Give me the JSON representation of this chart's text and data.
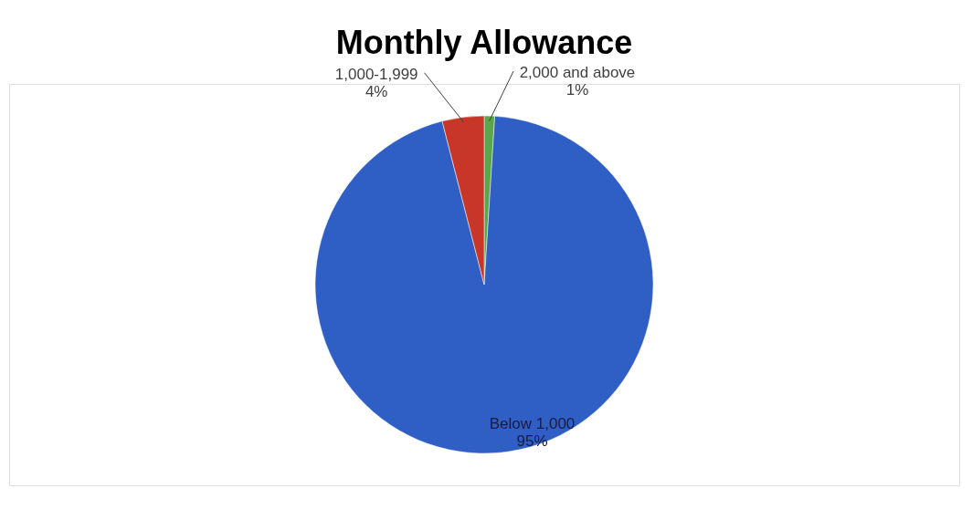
{
  "chart_data": {
    "type": "pie",
    "title": "Monthly Allowance",
    "categories": [
      "2,000 and above",
      "Below 1,000",
      "1,000-1,999"
    ],
    "values": [
      1,
      95,
      4
    ],
    "colors": [
      "#5aa64a",
      "#2f5ec4",
      "#c8362a"
    ],
    "value_labels": [
      "1%",
      "95%",
      "4%"
    ],
    "legend": false
  }
}
